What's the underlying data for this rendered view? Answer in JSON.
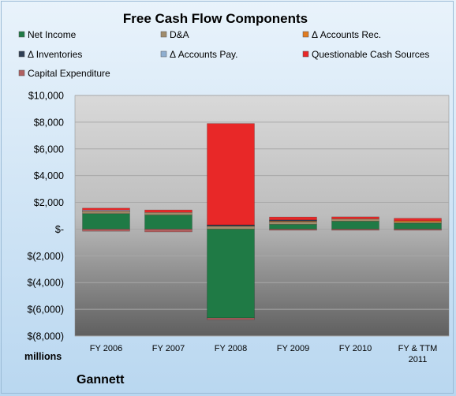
{
  "chart_data": {
    "type": "bar",
    "stacked": true,
    "title": "Free Cash Flow Components",
    "unit_label": "millions",
    "company": "Gannett",
    "categories": [
      [
        "FY 2006"
      ],
      [
        "FY 2007"
      ],
      [
        "FY 2008"
      ],
      [
        "FY 2009"
      ],
      [
        "FY 2010"
      ],
      [
        "FY & TTM",
        "2011"
      ]
    ],
    "ylim": [
      -8000,
      10000
    ],
    "yticks": [
      {
        "value": 10000,
        "label": "$10,000"
      },
      {
        "value": 8000,
        "label": "$8,000"
      },
      {
        "value": 6000,
        "label": "$6,000"
      },
      {
        "value": 4000,
        "label": "$4,000"
      },
      {
        "value": 2000,
        "label": "$2,000"
      },
      {
        "value": 0,
        "label": "$-"
      },
      {
        "value": -2000,
        "label": "$(2,000)"
      },
      {
        "value": -4000,
        "label": "$(4,000)"
      },
      {
        "value": -6000,
        "label": "$(6,000)"
      },
      {
        "value": -8000,
        "label": "$(8,000)"
      }
    ],
    "grid": true,
    "legend_position": "top",
    "series": [
      {
        "name": "Net Income",
        "color": "#1f7a45",
        "values": [
          1160,
          1056,
          -6647,
          355,
          588,
          440
        ]
      },
      {
        "name": "D&A",
        "color": "#a08c6c",
        "values": [
          200,
          200,
          240,
          200,
          180,
          170
        ]
      },
      {
        "name": "Δ Accounts Rec.",
        "color": "#e07b20",
        "values": [
          20,
          0,
          60,
          110,
          0,
          10
        ]
      },
      {
        "name": "Δ Inventories",
        "color": "#2f3f55",
        "values": [
          0,
          0,
          20,
          20,
          0,
          0
        ]
      },
      {
        "name": "Δ Accounts Pay.",
        "color": "#8eaed0",
        "values": [
          40,
          0,
          0,
          0,
          0,
          0
        ]
      },
      {
        "name": "Questionable Cash Sources",
        "color": "#e82828",
        "values": [
          150,
          180,
          7580,
          220,
          150,
          190
        ]
      },
      {
        "name": "Capital Expenditure",
        "color": "#b06060",
        "values": [
          -160,
          -210,
          -130,
          -60,
          -60,
          -70
        ]
      }
    ]
  }
}
